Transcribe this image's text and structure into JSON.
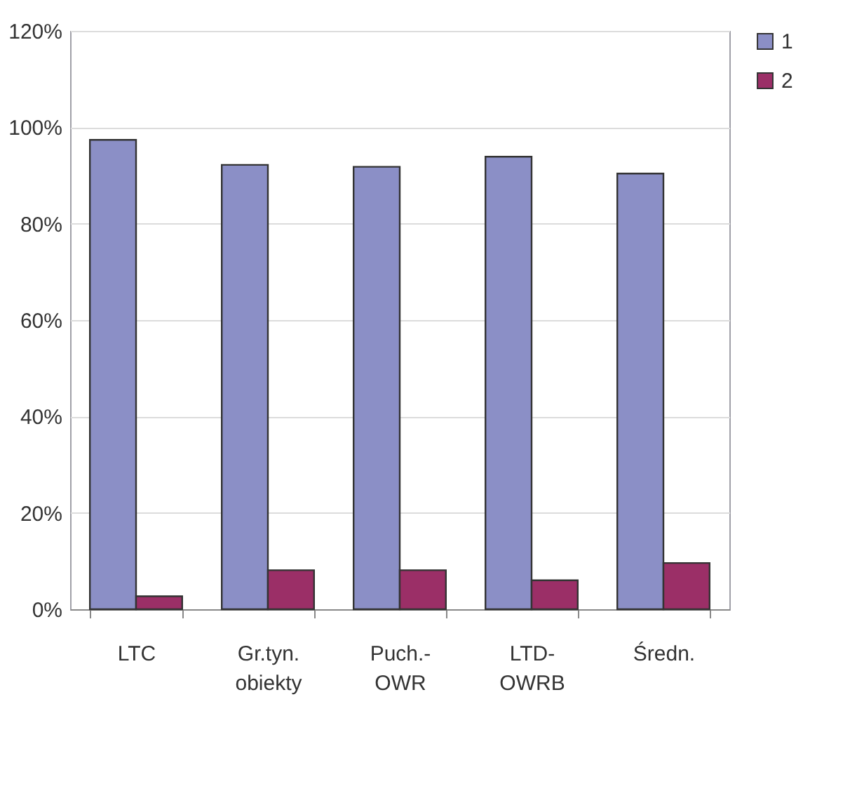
{
  "chart_data": {
    "type": "bar",
    "categories": [
      "LTC",
      "Gr.tyn.\nobiekty",
      "Puch.-\nOWR",
      "LTD-\nOWRB",
      "Średn."
    ],
    "series": [
      {
        "name": "1",
        "color": "#8b8fc6",
        "values": [
          97.4,
          92.2,
          91.8,
          93.9,
          90.4
        ]
      },
      {
        "name": "2",
        "color": "#9b2f67",
        "values": [
          2.7,
          8.1,
          8.1,
          6.0,
          9.6
        ]
      }
    ],
    "ylim": [
      0,
      120
    ],
    "yticks": [
      {
        "value": 0,
        "label": "0%"
      },
      {
        "value": 20,
        "label": "20%"
      },
      {
        "value": 40,
        "label": "40%"
      },
      {
        "value": 60,
        "label": "60%"
      },
      {
        "value": 80,
        "label": "80%"
      },
      {
        "value": 100,
        "label": "100%"
      },
      {
        "value": 120,
        "label": "120%"
      }
    ],
    "grid": "y",
    "legend": "right"
  }
}
